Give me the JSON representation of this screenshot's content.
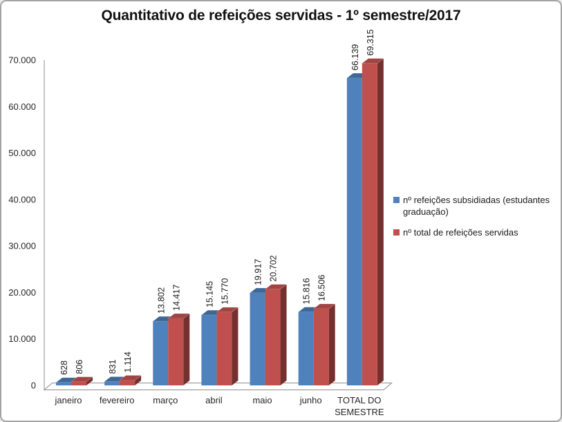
{
  "chart_data": {
    "type": "bar",
    "style": "3d-clustered-column",
    "title": "Quantitativo de refeições servidas - 1º semestre/2017",
    "categories": [
      "janeiro",
      "fevereiro",
      "março",
      "abril",
      "maio",
      "junho",
      "TOTAL DO SEMESTRE"
    ],
    "category_lines": [
      [
        "janeiro"
      ],
      [
        "fevereiro"
      ],
      [
        "março"
      ],
      [
        "abril"
      ],
      [
        "maio"
      ],
      [
        "junho"
      ],
      [
        "TOTAL DO",
        "SEMESTRE"
      ]
    ],
    "series": [
      {
        "name": "nº refeições subsidiadas (estudantes graduação)",
        "color": "#4F81BD",
        "color_top": "#3F6795",
        "color_side": "#2E4D73",
        "values": [
          628,
          831,
          13802,
          15145,
          19917,
          15816,
          66139
        ],
        "labels": [
          "628",
          "831",
          "13.802",
          "15.145",
          "19.917",
          "15.816",
          "66.139"
        ]
      },
      {
        "name": "nº total de refeições servidas",
        "color": "#C0504D",
        "color_top": "#A04543",
        "color_side": "#74302E",
        "values": [
          806,
          1114,
          14417,
          15770,
          20702,
          16506,
          69315
        ],
        "labels": [
          "806",
          "1.114",
          "14.417",
          "15.770",
          "20.702",
          "16.506",
          "69.315"
        ]
      }
    ],
    "y_axis": {
      "min": 0,
      "max": 70000,
      "ticks": [
        {
          "value": 70000,
          "label": "70.000"
        },
        {
          "value": 60000,
          "label": "60.000"
        },
        {
          "value": 50000,
          "label": "50.000"
        },
        {
          "value": 40000,
          "label": "40.000"
        },
        {
          "value": 30000,
          "label": "30.000"
        },
        {
          "value": 20000,
          "label": "20.000"
        },
        {
          "value": 10000,
          "label": "10.000"
        },
        {
          "value": 0,
          "label": "0"
        }
      ]
    },
    "grid": false,
    "legend_position": "right-middle",
    "background": "#FFFFFF",
    "axis_color": "#8C8C8C",
    "text_color": "#262626"
  },
  "legend": {
    "items": [
      {
        "label": "nº refeições subsidiadas (estudantes graduação)",
        "color": "#4F81BD"
      },
      {
        "label": "nº total de refeições servidas",
        "color": "#C0504D"
      }
    ]
  }
}
